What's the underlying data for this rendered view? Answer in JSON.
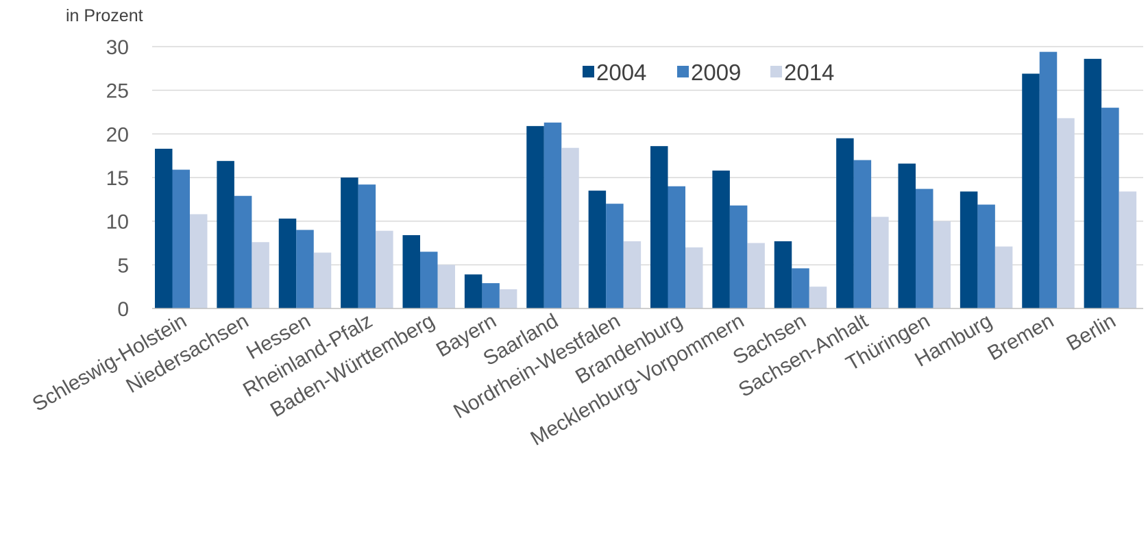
{
  "chart_data": {
    "type": "bar",
    "ylabel": "in Prozent",
    "ylim": [
      0,
      30
    ],
    "yticks": [
      0,
      5,
      10,
      15,
      20,
      25,
      30
    ],
    "grid": true,
    "legend_position": "top-center",
    "categories": [
      "Schleswig-Holstein",
      "Niedersachsen",
      "Hessen",
      "Rheinland-Pfalz",
      "Baden-Württemberg",
      "Bayern",
      "Saarland",
      "Nordrhein-Westfalen",
      "Brandenburg",
      "Mecklenburg-Vorpommern",
      "Sachsen",
      "Sachsen-Anhalt",
      "Thüringen",
      "Hamburg",
      "Bremen",
      "Berlin"
    ],
    "series": [
      {
        "name": "2004",
        "color": "#004a85",
        "values": [
          18.3,
          16.9,
          10.3,
          15.0,
          8.4,
          3.9,
          20.9,
          13.5,
          18.6,
          15.8,
          7.7,
          19.5,
          16.6,
          13.4,
          26.9,
          28.6
        ]
      },
      {
        "name": "2009",
        "color": "#3f7ebf",
        "values": [
          15.9,
          12.9,
          9.0,
          14.2,
          6.5,
          2.9,
          21.3,
          12.0,
          14.0,
          11.8,
          4.6,
          17.0,
          13.7,
          11.9,
          29.4,
          23.0
        ]
      },
      {
        "name": "2014",
        "color": "#ccd5e7",
        "values": [
          10.8,
          7.6,
          6.4,
          8.9,
          5.0,
          2.2,
          18.4,
          7.7,
          7.0,
          7.5,
          2.5,
          10.5,
          10.0,
          7.1,
          21.8,
          13.4
        ]
      }
    ]
  }
}
